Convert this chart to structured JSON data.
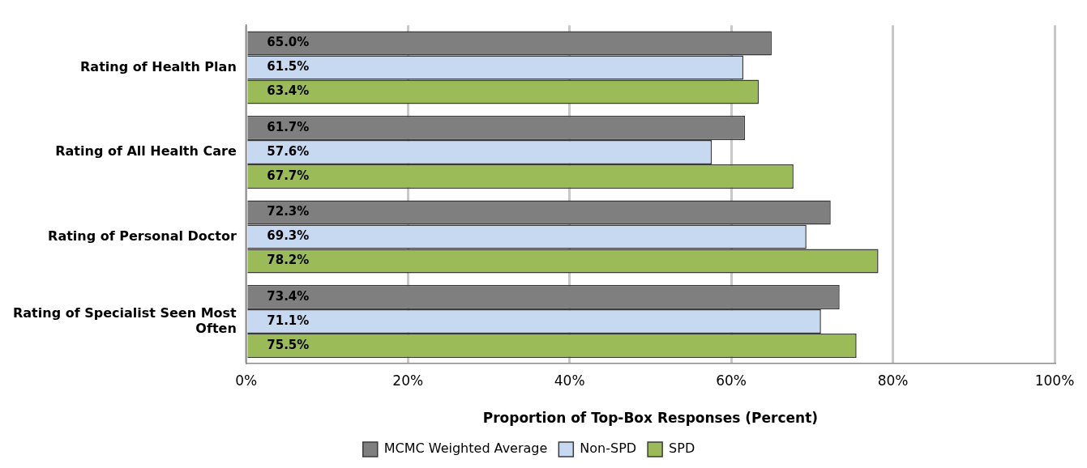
{
  "chart_data": {
    "type": "bar",
    "orientation": "horizontal",
    "xlabel": "Proportion of Top-Box Responses (Percent)",
    "categories": [
      "Rating of Health Plan",
      "Rating of All Health Care",
      "Rating of Personal Doctor",
      "Rating of Specialist Seen Most Often"
    ],
    "series": [
      {
        "name": "MCMC Weighted Average",
        "color": "#7f7f7f",
        "values": [
          65.0,
          61.7,
          72.3,
          73.4
        ],
        "value_labels": [
          "65.0%",
          "61.7%",
          "72.3%",
          "73.4%"
        ]
      },
      {
        "name": "Non-SPD",
        "color": "#c6d9f1",
        "values": [
          61.5,
          57.6,
          69.3,
          71.1
        ],
        "value_labels": [
          "61.5%",
          "57.6%",
          "69.3%",
          "71.1%"
        ]
      },
      {
        "name": "SPD",
        "color": "#9bbb59",
        "values": [
          63.4,
          67.7,
          78.2,
          75.5
        ],
        "value_labels": [
          "63.4%",
          "67.7%",
          "78.2%",
          "75.5%"
        ]
      }
    ],
    "xlim": [
      0,
      100
    ],
    "xticks": [
      {
        "value": 0,
        "label": "0%"
      },
      {
        "value": 20,
        "label": "20%"
      },
      {
        "value": 40,
        "label": "40%"
      },
      {
        "value": 60,
        "label": "60%"
      },
      {
        "value": 80,
        "label": "80%"
      },
      {
        "value": 100,
        "label": "100%"
      }
    ],
    "grid": "x",
    "legend": "bottom"
  }
}
